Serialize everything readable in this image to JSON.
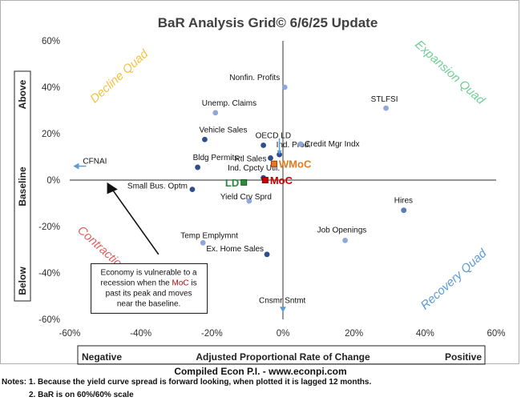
{
  "chart_data": {
    "type": "scatter",
    "title": "BaR Analysis Grid© 6/6/25 Update",
    "xlim": [
      -60,
      60
    ],
    "ylim": [
      -60,
      60
    ],
    "x_ticks": [
      "-60%",
      "-40%",
      "-20%",
      "0%",
      "20%",
      "40%",
      "60%"
    ],
    "y_ticks": [
      "60%",
      "40%",
      "20%",
      "0%",
      "-20%",
      "-40%",
      "-60%"
    ],
    "x_axis_bar": {
      "left": "Negative",
      "center": "Adjusted Proportional Rate of Change",
      "right": "Positive"
    },
    "y_axis_bar": {
      "top": "Above",
      "middle": "Baseline",
      "bottom": "Below"
    },
    "quadrants": {
      "top_left": "Decline Quad",
      "top_right": "Expansion Quad",
      "bottom_left": "Contraction Quad",
      "bottom_right": "Recovery Quad"
    },
    "quadrant_colors": {
      "decline": "#f5c242",
      "expansion": "#6fcf97",
      "contraction": "#e06060",
      "recovery": "#5b9bd5"
    },
    "points": [
      {
        "label": "Nonfin. Profits",
        "x": 0.5,
        "y": 40,
        "color": "#8fa8d8"
      },
      {
        "label": "STLFSI",
        "x": 29,
        "y": 31,
        "color": "#8fa8d8"
      },
      {
        "label": "Unemp. Claims",
        "x": -19,
        "y": 29,
        "color": "#8fa8d8"
      },
      {
        "label": "Vehicle Sales",
        "x": -22,
        "y": 17.5,
        "color": "#2e4e8c"
      },
      {
        "label": "OECD LD",
        "x": -5.5,
        "y": 15,
        "color": "#2e4e8c"
      },
      {
        "label": "Ind. Prod.",
        "x": -1,
        "y": 11,
        "color": "#2e4e8c"
      },
      {
        "label": "Credit Mgr Indx",
        "x": 5,
        "y": 15.5,
        "color": "#8fa8d8"
      },
      {
        "label": "Rtl Sales",
        "x": -3.5,
        "y": 9.5,
        "color": "#2e4e8c"
      },
      {
        "label": "CFNAI",
        "x": -59,
        "y": 6,
        "color": "#5b9bd5"
      },
      {
        "label": "Bldg Permits",
        "x": -24,
        "y": 5.5,
        "color": "#2e4e8c"
      },
      {
        "label": "Ind. Cpcty Util.",
        "x": -5.5,
        "y": 1,
        "color": "#2e4e8c"
      },
      {
        "label": "Small Bus. Optm",
        "x": -25.5,
        "y": -4,
        "color": "#2e4e8c"
      },
      {
        "label": "Yield Crv Sprd",
        "x": -9.5,
        "y": -9,
        "color": "#8fa8d8"
      },
      {
        "label": "Hires",
        "x": 34,
        "y": -13,
        "color": "#5b7bb8"
      },
      {
        "label": "Job Openings",
        "x": 17.5,
        "y": -26,
        "color": "#8fa8d8"
      },
      {
        "label": "Temp Emplymnt",
        "x": -22.5,
        "y": -27,
        "color": "#8fa8d8"
      },
      {
        "label": "Ex. Home Sales",
        "x": -4.5,
        "y": -32,
        "color": "#2e4e8c"
      },
      {
        "label": "Cnsmr Sntmt",
        "x": 0,
        "y": -57,
        "color": "#5b9bd5"
      }
    ],
    "markers": [
      {
        "label": "WMoC",
        "x": -2.5,
        "y": 7,
        "color": "#e07b20",
        "edge": "#b03000"
      },
      {
        "label": "MoC",
        "x": -5,
        "y": 0,
        "color": "#cc0000",
        "edge": "#880000"
      },
      {
        "label": "LD",
        "x": -11,
        "y": -1,
        "color": "#2e8b3e",
        "edge": "#1a5a28"
      }
    ],
    "annotation": {
      "lines": [
        "Economy is vulnerable to a",
        "recession when the MoC is",
        "past its peak and moves",
        "near the baseline."
      ],
      "highlight": "MoC"
    }
  },
  "footer": {
    "credit": "Compiled Econ P.I. - www.econpi.com",
    "note1": "Notes: 1. Because the yield curve spread is forward looking, when plotted it is lagged 12 months.",
    "note2": "2. BaR is on 60%/60% scale"
  }
}
